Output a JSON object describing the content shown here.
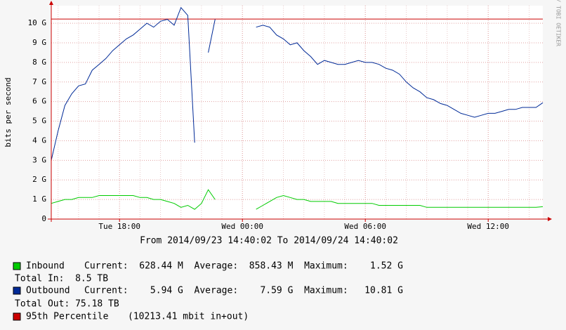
{
  "chart_data": {
    "type": "line",
    "y_label": "bits per second",
    "x_title": "From 2014/09/23 14:40:02 To 2014/09/24 14:40:02",
    "watermark": "RRDTOOL / TOBI OETIKER",
    "x": [
      "Tue 14:40",
      "Tue 15:00",
      "Tue 15:20",
      "Tue 15:40",
      "Tue 16:00",
      "Tue 16:20",
      "Tue 16:40",
      "Tue 17:00",
      "Tue 17:20",
      "Tue 17:40",
      "Tue 18:00",
      "Tue 18:20",
      "Tue 18:40",
      "Tue 19:00",
      "Tue 19:20",
      "Tue 19:40",
      "Tue 20:00",
      "Tue 20:20",
      "Tue 20:40",
      "Tue 21:00",
      "Tue 21:20",
      "Tue 21:40",
      "Tue 22:00",
      "Tue 22:20",
      "Tue 22:40",
      "Tue 23:00",
      "Tue 23:20",
      "Tue 23:40",
      "Wed 00:00",
      "Wed 00:20",
      "Wed 00:40",
      "Wed 01:00",
      "Wed 01:20",
      "Wed 01:40",
      "Wed 02:00",
      "Wed 02:20",
      "Wed 02:40",
      "Wed 03:00",
      "Wed 03:20",
      "Wed 03:40",
      "Wed 04:00",
      "Wed 04:20",
      "Wed 04:40",
      "Wed 05:00",
      "Wed 05:20",
      "Wed 05:40",
      "Wed 06:00",
      "Wed 06:20",
      "Wed 06:40",
      "Wed 07:00",
      "Wed 07:20",
      "Wed 07:40",
      "Wed 08:00",
      "Wed 08:20",
      "Wed 08:40",
      "Wed 09:00",
      "Wed 09:20",
      "Wed 09:40",
      "Wed 10:00",
      "Wed 10:20",
      "Wed 10:40",
      "Wed 11:00",
      "Wed 11:20",
      "Wed 11:40",
      "Wed 12:00",
      "Wed 12:20",
      "Wed 12:40",
      "Wed 13:00",
      "Wed 13:20",
      "Wed 13:40",
      "Wed 14:00",
      "Wed 14:20",
      "Wed 14:40"
    ],
    "xticks": [
      "Tue 18:00",
      "Wed 00:00",
      "Wed 06:00",
      "Wed 12:00"
    ],
    "ylim": [
      0,
      10.9
    ],
    "yticks": [
      0,
      {
        "value": 1,
        "label": "1 G"
      },
      {
        "value": 2,
        "label": "2 G"
      },
      {
        "value": 3,
        "label": "3 G"
      },
      {
        "value": 4,
        "label": "4 G"
      },
      {
        "value": 5,
        "label": "5 G"
      },
      {
        "value": 6,
        "label": "6 G"
      },
      {
        "value": 7,
        "label": "7 G"
      },
      {
        "value": 8,
        "label": "8 G"
      },
      {
        "value": 9,
        "label": "9 G"
      },
      {
        "value": 10,
        "label": "10 G"
      }
    ],
    "grid": true,
    "series": [
      {
        "name": "Inbound",
        "color": "#00cc00",
        "stats": "Current:  628.44 M  Average:  858.43 M  Maximum:    1.52 G",
        "total": "Total In:  8.5 TB",
        "values": [
          0.8,
          0.9,
          1.0,
          1.0,
          1.1,
          1.1,
          1.1,
          1.2,
          1.2,
          1.2,
          1.2,
          1.2,
          1.2,
          1.1,
          1.1,
          1.0,
          1.0,
          0.9,
          0.8,
          0.6,
          0.7,
          0.5,
          0.8,
          1.5,
          1.0,
          null,
          null,
          null,
          null,
          null,
          0.5,
          0.7,
          0.9,
          1.1,
          1.2,
          1.1,
          1.0,
          1.0,
          0.9,
          0.9,
          0.9,
          0.9,
          0.8,
          0.8,
          0.8,
          0.8,
          0.8,
          0.8,
          0.7,
          0.7,
          0.7,
          0.7,
          0.7,
          0.7,
          0.7,
          0.6,
          0.6,
          0.6,
          0.6,
          0.6,
          0.6,
          0.6,
          0.6,
          0.6,
          0.6,
          0.6,
          0.6,
          0.6,
          0.6,
          0.6,
          0.6,
          0.6,
          0.63
        ]
      },
      {
        "name": "Outbound",
        "color": "#002a97",
        "stats": "Current:    5.94 G  Average:    7.59 G  Maximum:   10.81 G",
        "total": "Total Out: 75.18 TB",
        "values": [
          3.0,
          4.5,
          5.8,
          6.4,
          6.8,
          6.9,
          7.6,
          7.9,
          8.2,
          8.6,
          8.9,
          9.2,
          9.4,
          9.7,
          10.0,
          9.8,
          10.1,
          10.2,
          9.9,
          10.8,
          10.4,
          3.9,
          null,
          8.5,
          10.2,
          null,
          null,
          null,
          null,
          null,
          9.8,
          9.9,
          9.8,
          9.4,
          9.2,
          8.9,
          9.0,
          8.6,
          8.3,
          7.9,
          8.1,
          8.0,
          7.9,
          7.9,
          8.0,
          8.1,
          8.0,
          8.0,
          7.9,
          7.7,
          7.6,
          7.4,
          7.0,
          6.7,
          6.5,
          6.2,
          6.1,
          5.9,
          5.8,
          5.6,
          5.4,
          5.3,
          5.2,
          5.3,
          5.4,
          5.4,
          5.5,
          5.6,
          5.6,
          5.7,
          5.7,
          5.7,
          5.94
        ]
      }
    ],
    "percentile": {
      "name": "95th Percentile",
      "note": "(10213.41 mbit in+out)",
      "value": 10.21341,
      "color": "#cc0000"
    }
  }
}
